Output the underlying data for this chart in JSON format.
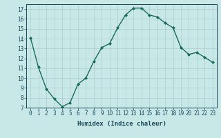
{
  "x": [
    0,
    1,
    2,
    3,
    4,
    5,
    6,
    7,
    8,
    9,
    10,
    11,
    12,
    13,
    14,
    15,
    16,
    17,
    18,
    19,
    20,
    21,
    22,
    23
  ],
  "y": [
    14.1,
    11.1,
    8.9,
    7.9,
    7.1,
    7.5,
    9.4,
    10.0,
    11.7,
    13.1,
    13.5,
    15.1,
    16.4,
    17.1,
    17.1,
    16.4,
    16.2,
    15.6,
    15.1,
    13.1,
    12.4,
    12.6,
    12.1,
    11.6
  ],
  "line_color": "#1a6b5a",
  "marker": "D",
  "marker_size": 2.0,
  "bg_color": "#c8e8e8",
  "grid_color": "#aacece",
  "xlabel": "Humidex (Indice chaleur)",
  "ylim": [
    7,
    17.5
  ],
  "xlim": [
    -0.5,
    23.5
  ],
  "yticks": [
    7,
    8,
    9,
    10,
    11,
    12,
    13,
    14,
    15,
    16,
    17
  ],
  "xticks": [
    0,
    1,
    2,
    3,
    4,
    5,
    6,
    7,
    8,
    9,
    10,
    11,
    12,
    13,
    14,
    15,
    16,
    17,
    18,
    19,
    20,
    21,
    22,
    23
  ],
  "xtick_labels": [
    "0",
    "1",
    "2",
    "3",
    "4",
    "5",
    "6",
    "7",
    "8",
    "9",
    "10",
    "11",
    "12",
    "13",
    "14",
    "15",
    "16",
    "17",
    "18",
    "19",
    "20",
    "21",
    "22",
    "23"
  ],
  "font_color": "#1a4a5a",
  "label_fontsize": 6.5,
  "tick_fontsize": 5.5,
  "linewidth": 1.0
}
